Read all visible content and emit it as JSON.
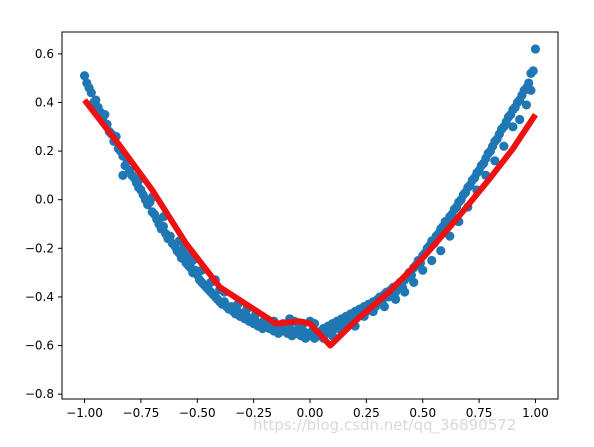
{
  "chart_data": {
    "type": "scatter",
    "xlim": [
      -1.1,
      1.1
    ],
    "ylim": [
      -0.82,
      0.69
    ],
    "grid": false,
    "x_ticks": [
      -1.0,
      -0.75,
      -0.5,
      -0.25,
      0.0,
      0.25,
      0.5,
      0.75,
      1.0
    ],
    "x_tick_labels": [
      "−1.00",
      "−0.75",
      "−0.50",
      "−0.25",
      "0.00",
      "0.25",
      "0.50",
      "0.75",
      "1.00"
    ],
    "y_ticks": [
      0.6,
      0.4,
      0.2,
      0.0,
      -0.2,
      -0.4,
      -0.6,
      -0.8
    ],
    "y_tick_labels": [
      "0.6",
      "0.4",
      "0.2",
      "0.0",
      "−0.2",
      "−0.4",
      "−0.6",
      "−0.8"
    ],
    "colors": {
      "scatter": "#1f77b4",
      "line": "#ee1111",
      "axes": "#000000",
      "watermark": "#d8d8d8"
    },
    "scatter_points": [
      [
        -1.0,
        0.51
      ],
      [
        -0.99,
        0.48
      ],
      [
        -0.98,
        0.46
      ],
      [
        -0.97,
        0.44
      ],
      [
        -0.96,
        0.4
      ],
      [
        -0.95,
        0.41
      ],
      [
        -0.94,
        0.38
      ],
      [
        -0.93,
        0.36
      ],
      [
        -0.92,
        0.33
      ],
      [
        -0.91,
        0.35
      ],
      [
        -0.9,
        0.31
      ],
      [
        -0.89,
        0.28
      ],
      [
        -0.88,
        0.27
      ],
      [
        -0.87,
        0.24
      ],
      [
        -0.86,
        0.26
      ],
      [
        -0.85,
        0.21
      ],
      [
        -0.84,
        0.2
      ],
      [
        -0.83,
        0.18
      ],
      [
        -0.82,
        0.14
      ],
      [
        -0.81,
        0.16
      ],
      [
        -0.8,
        0.12
      ],
      [
        -0.79,
        0.1
      ],
      [
        -0.78,
        0.09
      ],
      [
        -0.77,
        0.07
      ],
      [
        -0.76,
        0.08
      ],
      [
        -0.75,
        0.04
      ],
      [
        -0.74,
        0.02
      ],
      [
        -0.73,
        0.0
      ],
      [
        -0.72,
        -0.02
      ],
      [
        -0.71,
        -0.01
      ],
      [
        -0.7,
        -0.05
      ],
      [
        -0.69,
        -0.06
      ],
      [
        -0.68,
        -0.08
      ],
      [
        -0.67,
        -0.1
      ],
      [
        -0.66,
        -0.12
      ],
      [
        -0.65,
        -0.11
      ],
      [
        -0.64,
        -0.14
      ],
      [
        -0.63,
        -0.16
      ],
      [
        -0.62,
        -0.15
      ],
      [
        -0.61,
        -0.18
      ],
      [
        -0.6,
        -0.19
      ],
      [
        -0.59,
        -0.21
      ],
      [
        -0.58,
        -0.22
      ],
      [
        -0.57,
        -0.24
      ],
      [
        -0.56,
        -0.23
      ],
      [
        -0.55,
        -0.26
      ],
      [
        -0.54,
        -0.27
      ],
      [
        -0.53,
        -0.28
      ],
      [
        -0.52,
        -0.3
      ],
      [
        -0.51,
        -0.29
      ],
      [
        -0.5,
        -0.31
      ],
      [
        -0.49,
        -0.33
      ],
      [
        -0.48,
        -0.34
      ],
      [
        -0.47,
        -0.35
      ],
      [
        -0.46,
        -0.36
      ],
      [
        -0.45,
        -0.37
      ],
      [
        -0.44,
        -0.38
      ],
      [
        -0.43,
        -0.39
      ],
      [
        -0.42,
        -0.4
      ],
      [
        -0.41,
        -0.41
      ],
      [
        -0.4,
        -0.42
      ],
      [
        -0.39,
        -0.43
      ],
      [
        -0.38,
        -0.42
      ],
      [
        -0.37,
        -0.44
      ],
      [
        -0.36,
        -0.45
      ],
      [
        -0.35,
        -0.44
      ],
      [
        -0.34,
        -0.46
      ],
      [
        -0.33,
        -0.47
      ],
      [
        -0.32,
        -0.46
      ],
      [
        -0.31,
        -0.48
      ],
      [
        -0.3,
        -0.47
      ],
      [
        -0.29,
        -0.49
      ],
      [
        -0.28,
        -0.48
      ],
      [
        -0.27,
        -0.5
      ],
      [
        -0.26,
        -0.49
      ],
      [
        -0.25,
        -0.51
      ],
      [
        -0.24,
        -0.5
      ],
      [
        -0.23,
        -0.52
      ],
      [
        -0.22,
        -0.51
      ],
      [
        -0.21,
        -0.53
      ],
      [
        -0.2,
        -0.52
      ],
      [
        -0.19,
        -0.5
      ],
      [
        -0.18,
        -0.53
      ],
      [
        -0.17,
        -0.51
      ],
      [
        -0.16,
        -0.54
      ],
      [
        -0.15,
        -0.52
      ],
      [
        -0.14,
        -0.55
      ],
      [
        -0.13,
        -0.53
      ],
      [
        -0.12,
        -0.54
      ],
      [
        -0.11,
        -0.52
      ],
      [
        -0.1,
        -0.55
      ],
      [
        -0.09,
        -0.53
      ],
      [
        -0.08,
        -0.56
      ],
      [
        -0.07,
        -0.54
      ],
      [
        -0.06,
        -0.55
      ],
      [
        -0.05,
        -0.53
      ],
      [
        -0.04,
        -0.56
      ],
      [
        -0.03,
        -0.54
      ],
      [
        -0.02,
        -0.57
      ],
      [
        -0.01,
        -0.55
      ],
      [
        0.0,
        -0.56
      ],
      [
        0.01,
        -0.54
      ],
      [
        0.02,
        -0.57
      ],
      [
        0.03,
        -0.55
      ],
      [
        0.04,
        -0.56
      ],
      [
        0.05,
        -0.54
      ],
      [
        0.06,
        -0.53
      ],
      [
        0.07,
        -0.55
      ],
      [
        0.08,
        -0.52
      ],
      [
        0.09,
        -0.54
      ],
      [
        0.1,
        -0.51
      ],
      [
        0.11,
        -0.53
      ],
      [
        0.12,
        -0.5
      ],
      [
        0.13,
        -0.52
      ],
      [
        0.14,
        -0.49
      ],
      [
        0.15,
        -0.51
      ],
      [
        0.16,
        -0.48
      ],
      [
        0.17,
        -0.5
      ],
      [
        0.18,
        -0.47
      ],
      [
        0.19,
        -0.49
      ],
      [
        0.2,
        -0.46
      ],
      [
        0.21,
        -0.48
      ],
      [
        0.22,
        -0.45
      ],
      [
        0.23,
        -0.47
      ],
      [
        0.24,
        -0.44
      ],
      [
        0.25,
        -0.46
      ],
      [
        0.26,
        -0.43
      ],
      [
        0.27,
        -0.45
      ],
      [
        0.28,
        -0.42
      ],
      [
        0.29,
        -0.44
      ],
      [
        0.3,
        -0.41
      ],
      [
        0.31,
        -0.4
      ],
      [
        0.32,
        -0.42
      ],
      [
        0.33,
        -0.39
      ],
      [
        0.34,
        -0.38
      ],
      [
        0.35,
        -0.4
      ],
      [
        0.36,
        -0.37
      ],
      [
        0.37,
        -0.36
      ],
      [
        0.38,
        -0.38
      ],
      [
        0.39,
        -0.35
      ],
      [
        0.4,
        -0.34
      ],
      [
        0.41,
        -0.36
      ],
      [
        0.42,
        -0.33
      ],
      [
        0.43,
        -0.32
      ],
      [
        0.44,
        -0.3
      ],
      [
        0.45,
        -0.31
      ],
      [
        0.46,
        -0.28
      ],
      [
        0.47,
        -0.27
      ],
      [
        0.48,
        -0.25
      ],
      [
        0.49,
        -0.26
      ],
      [
        0.5,
        -0.23
      ],
      [
        0.51,
        -0.22
      ],
      [
        0.52,
        -0.2
      ],
      [
        0.53,
        -0.19
      ],
      [
        0.54,
        -0.17
      ],
      [
        0.55,
        -0.18
      ],
      [
        0.56,
        -0.15
      ],
      [
        0.57,
        -0.14
      ],
      [
        0.58,
        -0.12
      ],
      [
        0.59,
        -0.11
      ],
      [
        0.6,
        -0.09
      ],
      [
        0.61,
        -0.1
      ],
      [
        0.62,
        -0.07
      ],
      [
        0.63,
        -0.06
      ],
      [
        0.64,
        -0.04
      ],
      [
        0.65,
        -0.03
      ],
      [
        0.66,
        -0.01
      ],
      [
        0.67,
        0.0
      ],
      [
        0.68,
        0.02
      ],
      [
        0.69,
        0.03
      ],
      [
        0.7,
        0.05
      ],
      [
        0.71,
        0.06
      ],
      [
        0.72,
        0.08
      ],
      [
        0.73,
        0.09
      ],
      [
        0.74,
        0.11
      ],
      [
        0.75,
        0.12
      ],
      [
        0.76,
        0.14
      ],
      [
        0.77,
        0.15
      ],
      [
        0.78,
        0.17
      ],
      [
        0.79,
        0.19
      ],
      [
        0.8,
        0.2
      ],
      [
        0.81,
        0.22
      ],
      [
        0.82,
        0.24
      ],
      [
        0.83,
        0.25
      ],
      [
        0.84,
        0.27
      ],
      [
        0.85,
        0.29
      ],
      [
        0.86,
        0.3
      ],
      [
        0.87,
        0.32
      ],
      [
        0.88,
        0.34
      ],
      [
        0.89,
        0.35
      ],
      [
        0.9,
        0.37
      ],
      [
        0.91,
        0.38
      ],
      [
        0.92,
        0.4
      ],
      [
        0.93,
        0.41
      ],
      [
        0.94,
        0.43
      ],
      [
        0.95,
        0.45
      ],
      [
        0.96,
        0.46
      ],
      [
        0.97,
        0.48
      ],
      [
        0.98,
        0.52
      ],
      [
        0.99,
        0.53
      ],
      [
        1.0,
        0.62
      ],
      [
        -0.83,
        0.1
      ],
      [
        -0.76,
        0.05
      ],
      [
        -0.7,
        0.01
      ],
      [
        -0.65,
        -0.07
      ],
      [
        -0.58,
        -0.17
      ],
      [
        -0.56,
        -0.2
      ],
      [
        -0.54,
        -0.23
      ],
      [
        -0.52,
        -0.25
      ],
      [
        -0.48,
        -0.29
      ],
      [
        -0.44,
        -0.34
      ],
      [
        -0.42,
        -0.33
      ],
      [
        -0.4,
        -0.37
      ],
      [
        -0.38,
        -0.38
      ],
      [
        -0.32,
        -0.43
      ],
      [
        -0.28,
        -0.45
      ],
      [
        -0.24,
        -0.47
      ],
      [
        -0.2,
        -0.49
      ],
      [
        -0.16,
        -0.5
      ],
      [
        -0.12,
        -0.51
      ],
      [
        -0.09,
        -0.49
      ],
      [
        -0.07,
        -0.5
      ],
      [
        -0.03,
        -0.51
      ],
      [
        0.0,
        -0.5
      ],
      [
        0.02,
        -0.51
      ],
      [
        0.06,
        -0.57
      ],
      [
        0.1,
        -0.56
      ],
      [
        0.14,
        -0.54
      ],
      [
        0.2,
        -0.52
      ],
      [
        0.24,
        -0.48
      ],
      [
        0.28,
        -0.46
      ],
      [
        0.33,
        -0.44
      ],
      [
        0.38,
        -0.41
      ],
      [
        0.42,
        -0.38
      ],
      [
        0.46,
        -0.34
      ],
      [
        0.5,
        -0.29
      ],
      [
        0.54,
        -0.25
      ],
      [
        0.58,
        -0.21
      ],
      [
        0.62,
        -0.15
      ],
      [
        0.66,
        -0.09
      ],
      [
        0.7,
        -0.03
      ],
      [
        0.74,
        0.04
      ],
      [
        0.78,
        0.1
      ],
      [
        0.82,
        0.16
      ],
      [
        0.86,
        0.22
      ],
      [
        0.9,
        0.3
      ],
      [
        0.93,
        0.33
      ],
      [
        0.96,
        0.39
      ],
      [
        0.98,
        0.45
      ]
    ],
    "line_points": [
      [
        -1.0,
        0.41
      ],
      [
        -0.85,
        0.23
      ],
      [
        -0.7,
        0.04
      ],
      [
        -0.55,
        -0.18
      ],
      [
        -0.4,
        -0.36
      ],
      [
        -0.25,
        -0.45
      ],
      [
        -0.15,
        -0.51
      ],
      [
        -0.05,
        -0.5
      ],
      [
        0.0,
        -0.51
      ],
      [
        0.04,
        -0.55
      ],
      [
        0.09,
        -0.6
      ],
      [
        0.2,
        -0.5
      ],
      [
        0.35,
        -0.38
      ],
      [
        0.5,
        -0.24
      ],
      [
        0.65,
        -0.08
      ],
      [
        0.8,
        0.09
      ],
      [
        0.9,
        0.21
      ],
      [
        1.0,
        0.35
      ]
    ]
  },
  "watermark": {
    "text": "https://blog.csdn.net/qq_36890572"
  }
}
